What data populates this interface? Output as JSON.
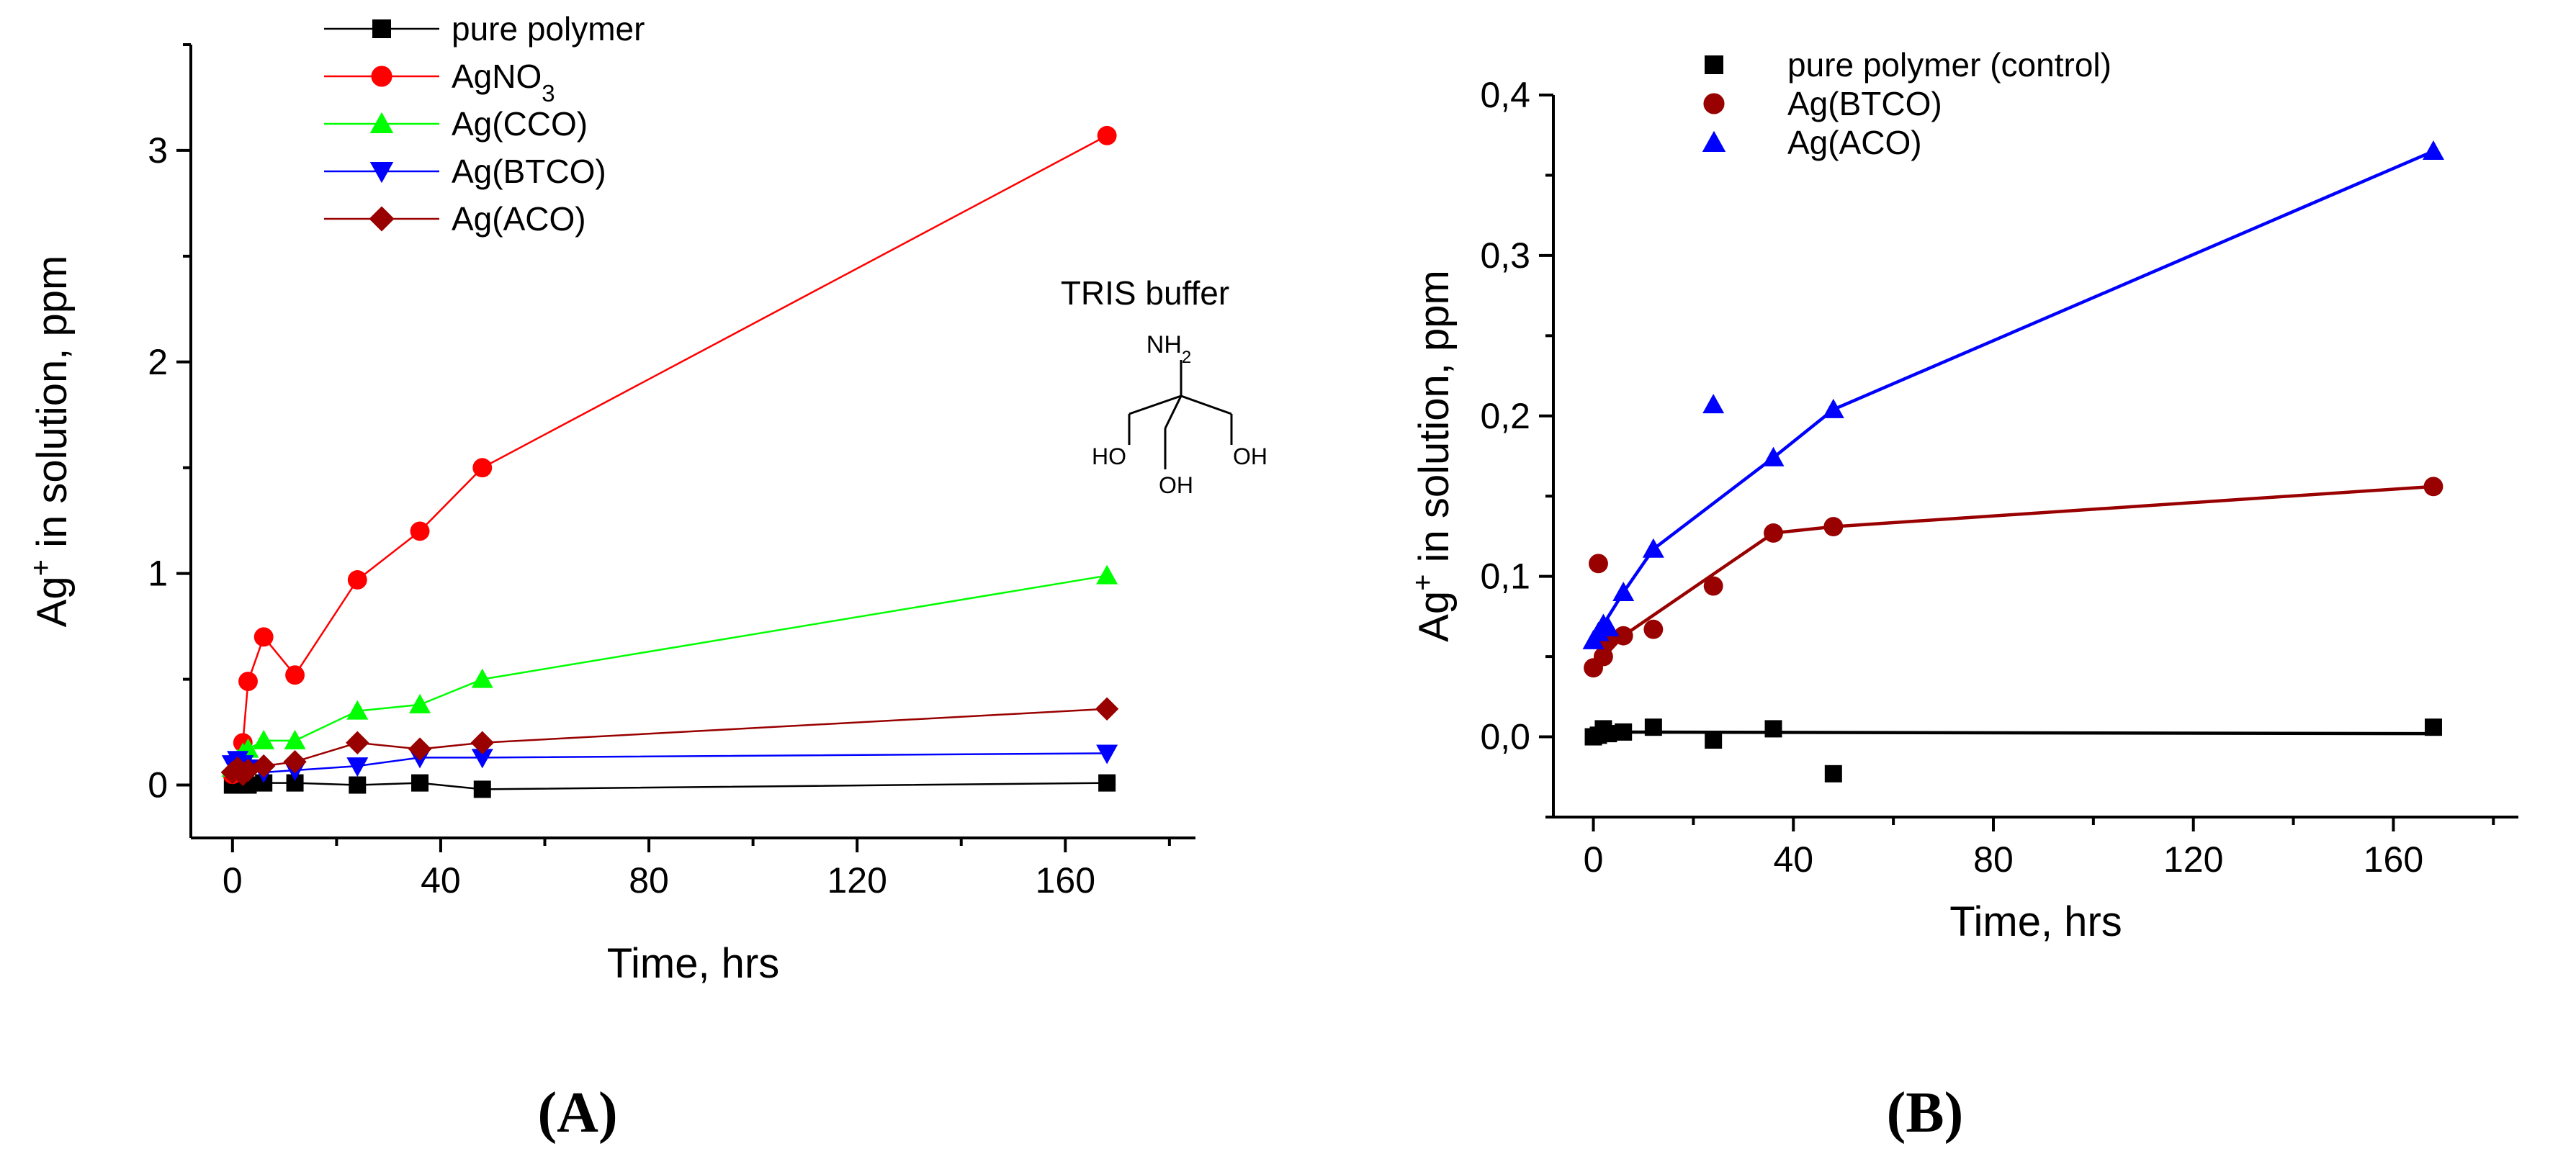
{
  "chart_data": [
    {
      "panel": "(A)",
      "panel_label": "(A)",
      "type": "line",
      "xlabel": "Time, hrs",
      "ylabel_prefix": "Ag",
      "ylabel_sup": "+",
      "ylabel_suffix": " in solution, ppm",
      "xlim": [
        -8,
        185
      ],
      "ylim": [
        -0.25,
        3.5
      ],
      "xticks": [
        0,
        40,
        80,
        120,
        160
      ],
      "xtick_labels": [
        "0",
        "40",
        "80",
        "120",
        "160"
      ],
      "yticks": [
        0,
        1,
        2,
        3
      ],
      "ytick_labels": [
        "0",
        "1",
        "2",
        "3"
      ],
      "legend_position": "top-left",
      "series": [
        {
          "name": "pure polymer",
          "color": "#000000",
          "marker": "square",
          "x": [
            0,
            1,
            3,
            6,
            12,
            24,
            36,
            48,
            168
          ],
          "y": [
            0.0,
            0.0,
            0.0,
            0.01,
            0.01,
            0.0,
            0.01,
            -0.02,
            0.01
          ]
        },
        {
          "name": "AgNO3",
          "name_base": "AgNO",
          "name_sub": "3",
          "color": "#ff0000",
          "marker": "circle",
          "x": [
            0,
            1,
            2,
            3,
            6,
            12,
            24,
            36,
            48,
            168
          ],
          "y": [
            0.05,
            0.1,
            0.2,
            0.49,
            0.7,
            0.52,
            0.97,
            1.2,
            1.5,
            3.07
          ]
        },
        {
          "name": "Ag(CCO)",
          "color": "#00ff00",
          "marker": "triangle-up",
          "x": [
            0,
            1,
            2,
            3,
            6,
            12,
            24,
            36,
            48,
            168
          ],
          "y": [
            0.08,
            0.12,
            0.15,
            0.17,
            0.21,
            0.21,
            0.35,
            0.38,
            0.5,
            0.99
          ]
        },
        {
          "name": "Ag(BTCO)",
          "color": "#0000ff",
          "marker": "triangle-down",
          "x": [
            0,
            1,
            2,
            3,
            6,
            12,
            24,
            36,
            48,
            168
          ],
          "y": [
            0.1,
            0.12,
            0.1,
            0.08,
            0.06,
            0.07,
            0.09,
            0.13,
            0.13,
            0.15
          ]
        },
        {
          "name": "Ag(ACO)",
          "color": "#990000",
          "marker": "diamond",
          "x": [
            0,
            1,
            2,
            3,
            6,
            12,
            24,
            36,
            48,
            168
          ],
          "y": [
            0.06,
            0.08,
            0.05,
            0.07,
            0.09,
            0.11,
            0.2,
            0.17,
            0.2,
            0.36
          ]
        }
      ],
      "annotation": {
        "title": "TRIS buffer",
        "nh2_base": "NH",
        "nh2_sub": "2",
        "oh_left": "HO",
        "oh_bottom": "OH",
        "oh_right": "OH"
      }
    },
    {
      "panel": "(B)",
      "panel_label": "(B)",
      "type": "scatter",
      "xlabel": "Time, hrs",
      "ylabel_prefix": "Ag",
      "ylabel_sup": "+",
      "ylabel_suffix": " in solution, ppm",
      "xlim": [
        -8,
        185
      ],
      "ylim": [
        -0.05,
        0.4
      ],
      "xticks": [
        0,
        40,
        80,
        120,
        160
      ],
      "xtick_labels": [
        "0",
        "40",
        "80",
        "120",
        "160"
      ],
      "yticks": [
        0.0,
        0.1,
        0.2,
        0.3,
        0.4
      ],
      "ytick_labels": [
        "0,0",
        "0,1",
        "0,2",
        "0,3",
        "0,4"
      ],
      "legend_position": "top-left",
      "series": [
        {
          "name": "pure polymer (control)",
          "color": "#000000",
          "marker": "square",
          "x": [
            0,
            1,
            2,
            3,
            6,
            12,
            24,
            36,
            48,
            168
          ],
          "y": [
            0.0,
            0.001,
            0.005,
            0.002,
            0.003,
            0.006,
            -0.002,
            0.005,
            -0.023,
            0.006
          ],
          "fit": {
            "x": [
              0,
              168
            ],
            "y": [
              0.003,
              0.002
            ]
          }
        },
        {
          "name": "Ag(BTCO)",
          "color": "#990000",
          "marker": "circle",
          "x": [
            0,
            1,
            2,
            3,
            6,
            12,
            24,
            36,
            48,
            168
          ],
          "y": [
            0.043,
            0.108,
            0.05,
            0.061,
            0.063,
            0.067,
            0.094,
            0.127,
            0.131,
            0.156
          ],
          "fit": {
            "x": [
              0,
              6,
              36,
              48,
              168
            ],
            "y": [
              0.043,
              0.063,
              0.127,
              0.131,
              0.156
            ]
          }
        },
        {
          "name": "Ag(ACO)",
          "color": "#0000ff",
          "marker": "triangle-up",
          "x": [
            0,
            1,
            2,
            3,
            6,
            12,
            24,
            36,
            48,
            168
          ],
          "y": [
            0.06,
            0.065,
            0.07,
            0.068,
            0.09,
            0.117,
            0.207,
            0.174,
            0.204,
            0.365
          ],
          "fit": {
            "x": [
              0,
              6,
              12,
              36,
              48,
              168
            ],
            "y": [
              0.06,
              0.09,
              0.117,
              0.174,
              0.204,
              0.365
            ]
          }
        }
      ]
    }
  ]
}
